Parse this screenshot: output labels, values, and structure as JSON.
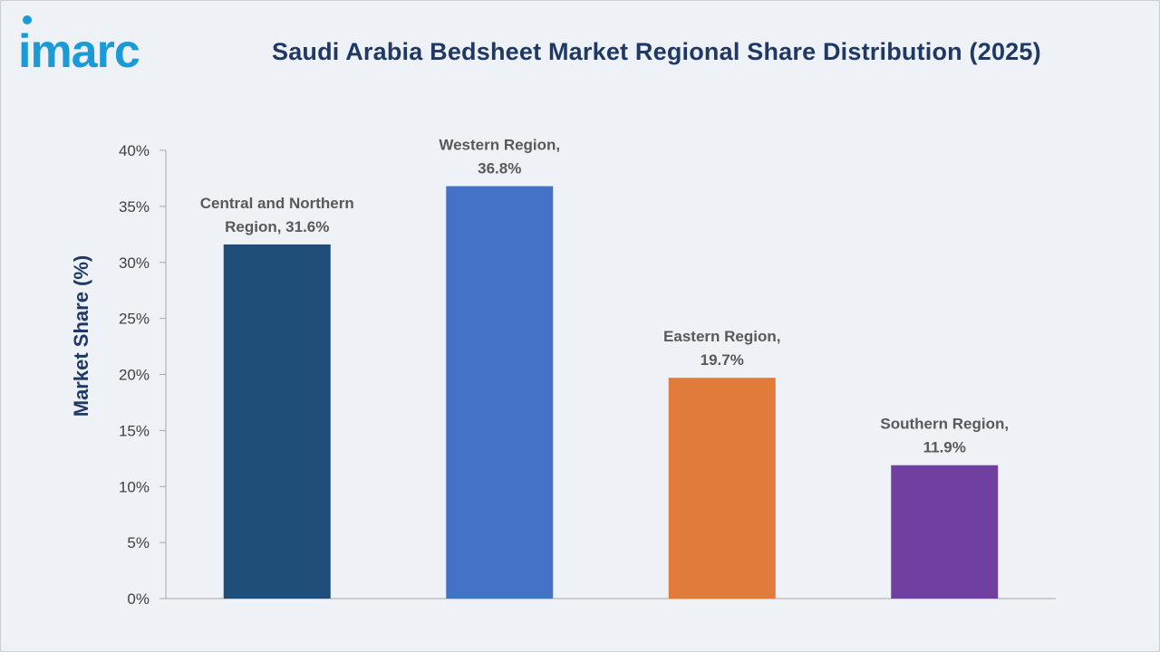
{
  "brand": {
    "logo_text": "imarc",
    "logo_color": "#1a9ad6"
  },
  "chart_data": {
    "type": "bar",
    "title": "Saudi Arabia Bedsheet Market Regional Share Distribution (2025)",
    "xlabel": "",
    "ylabel": "Market Share (%)",
    "ylim": [
      0,
      40
    ],
    "ytick_step": 5,
    "ytick_suffix": "%",
    "grid": false,
    "legend": "none",
    "categories": [
      "Central and Northern Region",
      "Western Region",
      "Eastern Region",
      "Southern Region"
    ],
    "values": [
      31.6,
      36.8,
      19.7,
      11.9
    ],
    "bar_labels": [
      [
        "Central and Northern",
        "Region, 31.6%"
      ],
      [
        "Western Region,",
        "36.8%"
      ],
      [
        "Eastern Region,",
        "19.7%"
      ],
      [
        "Southern Region,",
        "11.9%"
      ]
    ],
    "colors": [
      "#1f4e79",
      "#4472c4",
      "#e07b39",
      "#7040a0"
    ]
  }
}
